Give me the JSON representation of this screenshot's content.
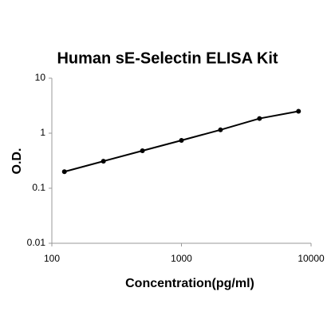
{
  "chart_data": {
    "type": "scatter",
    "title": "Human sE-Selectin ELISA Kit",
    "x_label": "Concentration(pg/ml)",
    "y_label": "O.D.",
    "xscale": "log",
    "yscale": "log",
    "xlim": [
      100,
      10000
    ],
    "xticks": [
      100,
      1000,
      10000
    ],
    "ylim": [
      0.01,
      10
    ],
    "yticks": [
      0.01,
      0.1,
      1,
      10
    ],
    "connect": true,
    "color": "#000000",
    "x": [
      125,
      250,
      500,
      1000,
      2000,
      4000,
      8000
    ],
    "values": [
      0.2,
      0.31,
      0.48,
      0.74,
      1.15,
      1.85,
      2.5
    ]
  }
}
